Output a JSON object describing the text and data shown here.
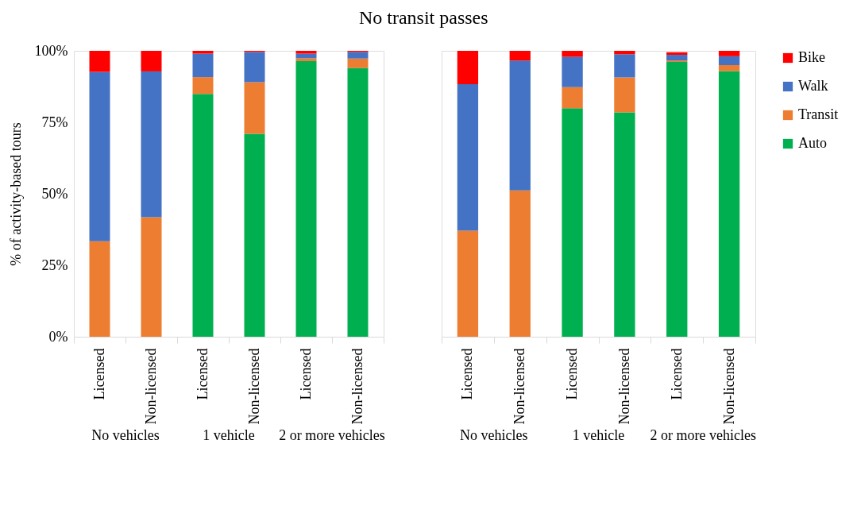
{
  "chart_data": [
    {
      "type": "bar",
      "stacked": true,
      "title": "No transit passes",
      "ylabel": "% of activity-based tours",
      "legend": "right",
      "grid": false,
      "categories": [
        "Licensed",
        "Non-licensed",
        "Licensed",
        "Non-licensed",
        "Licensed",
        "Non-licensed"
      ],
      "annotations": [
        "No vehicles",
        "1 vehicle",
        "2 or more vehicles"
      ],
      "ylim": [
        0,
        100
      ],
      "yticks": [
        {
          "value": 0,
          "label": "0%"
        },
        {
          "value": 25,
          "label": "25%"
        },
        {
          "value": 50,
          "label": "50%"
        },
        {
          "value": 75,
          "label": "75%"
        },
        {
          "value": 100,
          "label": "100%"
        }
      ],
      "series": [
        {
          "name": "Auto",
          "color": "#00b050",
          "values": [
            0,
            0,
            84.9,
            71.0,
            96.4,
            94.0
          ]
        },
        {
          "name": "Transit",
          "color": "#ed7d31",
          "values": [
            33.4,
            41.8,
            5.9,
            18.0,
            1.0,
            3.3
          ]
        },
        {
          "name": "Walk",
          "color": "#4472c4",
          "values": [
            59.2,
            51.0,
            8.2,
            10.6,
            1.6,
            2.3
          ]
        },
        {
          "name": "Bike",
          "color": "#ff0000",
          "values": [
            7.4,
            7.2,
            1.0,
            0.4,
            1.0,
            0.4
          ]
        }
      ]
    },
    {
      "type": "bar",
      "stacked": true,
      "legend": "right",
      "grid": false,
      "tick_labels": "x",
      "categories": [
        "Licensed",
        "Non-licensed",
        "Licensed",
        "Non-licensed",
        "Licensed",
        "Non-licensed"
      ],
      "annotations": [
        "No vehicles",
        "1 vehicle",
        "2 or more vehicles"
      ],
      "ylim": [
        0,
        100
      ],
      "series": [
        {
          "name": "Auto",
          "color": "#00b050",
          "values": [
            0,
            0,
            79.9,
            78.5,
            96.1,
            92.9
          ]
        },
        {
          "name": "Transit",
          "color": "#ed7d31",
          "values": [
            37.1,
            51.2,
            7.4,
            12.2,
            0.5,
            2.1
          ]
        },
        {
          "name": "Walk",
          "color": "#4472c4",
          "values": [
            51.2,
            45.4,
            10.6,
            8.1,
            2.0,
            3.1
          ]
        },
        {
          "name": "Bike",
          "color": "#ff0000",
          "values": [
            11.7,
            3.4,
            2.1,
            1.2,
            0.9,
            1.9
          ]
        }
      ]
    }
  ]
}
